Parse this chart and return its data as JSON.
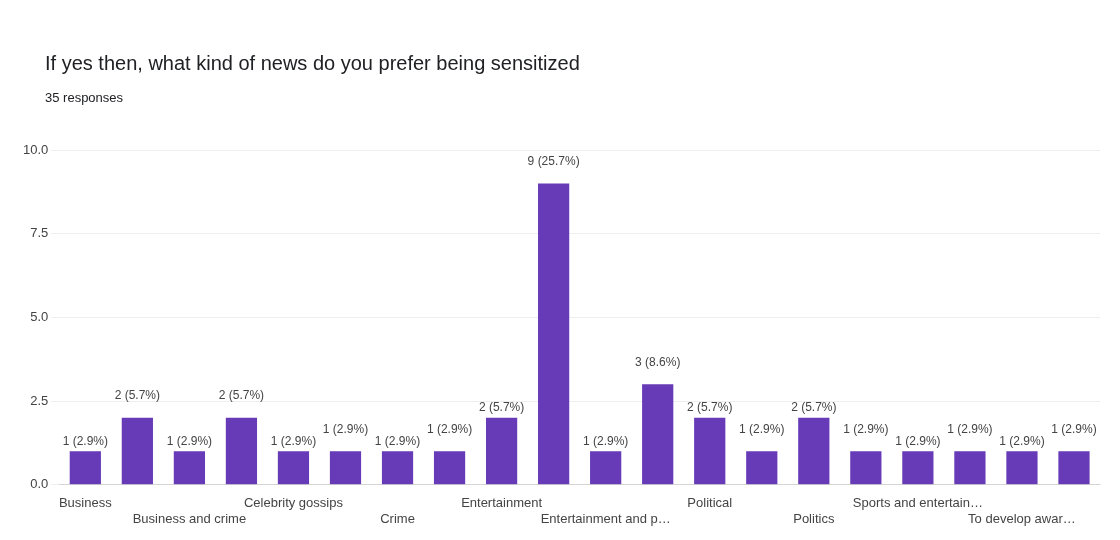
{
  "chart_data": {
    "type": "bar",
    "title": "If yes then, what kind of news do you prefer being sensitized",
    "subtitle": "35 responses",
    "categories": [
      "Business",
      null,
      "Business and crime",
      null,
      "Celebrity gossips",
      null,
      "Crime",
      null,
      "Entertainment",
      null,
      "Entertainment and p…",
      null,
      "Political",
      null,
      "Politics",
      null,
      "Sports and entertain…",
      null,
      "To develop awar…",
      null
    ],
    "values": [
      1,
      2,
      1,
      2,
      1,
      1,
      1,
      1,
      2,
      9,
      1,
      3,
      2,
      1,
      2,
      1,
      1,
      1,
      1,
      1
    ],
    "value_labels": [
      "1 (2.9%)",
      "2 (5.7%)",
      "1 (2.9%)",
      "2 (5.7%)",
      "1 (2.9%)",
      "1 (2.9%)",
      "1 (2.9%)",
      "1 (2.9%)",
      "2 (5.7%)",
      "9 (25.7%)",
      "1 (2.9%)",
      "3 (8.6%)",
      "2 (5.7%)",
      "1 (2.9%)",
      "2 (5.7%)",
      "1 (2.9%)",
      "1 (2.9%)",
      "1 (2.9%)",
      "1 (2.9%)",
      "1 (2.9%)"
    ],
    "color": "#673ab7",
    "ylim": [
      0,
      10
    ],
    "yticks": [
      {
        "value": 0,
        "label": "0.0"
      },
      {
        "value": 2.5,
        "label": "2.5"
      },
      {
        "value": 5,
        "label": "5.0"
      },
      {
        "value": 7.5,
        "label": "7.5"
      },
      {
        "value": 10,
        "label": "10.0"
      }
    ],
    "grid": "y",
    "legend": false
  }
}
